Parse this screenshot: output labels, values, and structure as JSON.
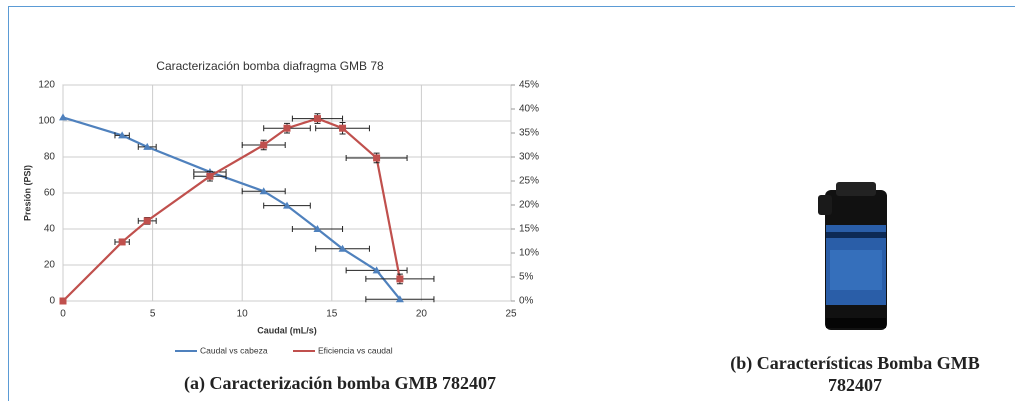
{
  "chart_data": {
    "type": "line",
    "title": "Caracterización bomba diafragma GMB 78",
    "xlabel": "Caudal (mL/s)",
    "ylabel": "Presión (PSI)",
    "x": [
      0,
      3.3,
      4.7,
      8.2,
      11.2,
      12.5,
      14.2,
      15.6,
      17.5,
      18.8
    ],
    "xlim": [
      0,
      25
    ],
    "xticks": [
      0,
      5,
      10,
      15,
      20,
      25
    ],
    "ylim": [
      0,
      120
    ],
    "yticks": [
      0,
      20,
      40,
      60,
      80,
      100,
      120
    ],
    "y2lim": [
      0,
      45
    ],
    "y2ticks": [
      {
        "value": 0,
        "label": "0%"
      },
      {
        "value": 5,
        "label": "5%"
      },
      {
        "value": 10,
        "label": "10%"
      },
      {
        "value": 15,
        "label": "15%"
      },
      {
        "value": 20,
        "label": "20%"
      },
      {
        "value": 25,
        "label": "25%"
      },
      {
        "value": 30,
        "label": "30%"
      },
      {
        "value": 35,
        "label": "35%"
      },
      {
        "value": 40,
        "label": "40%"
      },
      {
        "value": 45,
        "label": "45%"
      }
    ],
    "grid": true,
    "series": [
      {
        "name": "Caudal vs cabeza",
        "color": "#4f81bd",
        "marker": "triangle",
        "values": [
          102,
          92,
          85.6,
          71.7,
          61,
          53,
          40,
          29,
          17,
          1
        ],
        "xerr": [
          null,
          0.4,
          0.5,
          0.9,
          1.2,
          1.3,
          1.4,
          1.5,
          1.7,
          1.9
        ]
      },
      {
        "name": "Eficiencia vs caudal",
        "color": "#c0504d",
        "marker": "square",
        "axis": "y2",
        "values": [
          0,
          12.3,
          16.7,
          26,
          32.5,
          36,
          38,
          36,
          29.8,
          4.6
        ],
        "xerr": [
          null,
          0.4,
          0.5,
          0.9,
          1.2,
          1.3,
          1.4,
          1.5,
          1.7,
          1.9
        ],
        "yerr": [
          null,
          0.5,
          0.7,
          1,
          1,
          1,
          1,
          1.2,
          1,
          1
        ]
      }
    ]
  },
  "figure": {
    "caption_a": "(a) Caracterización bomba GMB 782407",
    "caption_b": "(b) Características Bomba GMB 782407"
  }
}
